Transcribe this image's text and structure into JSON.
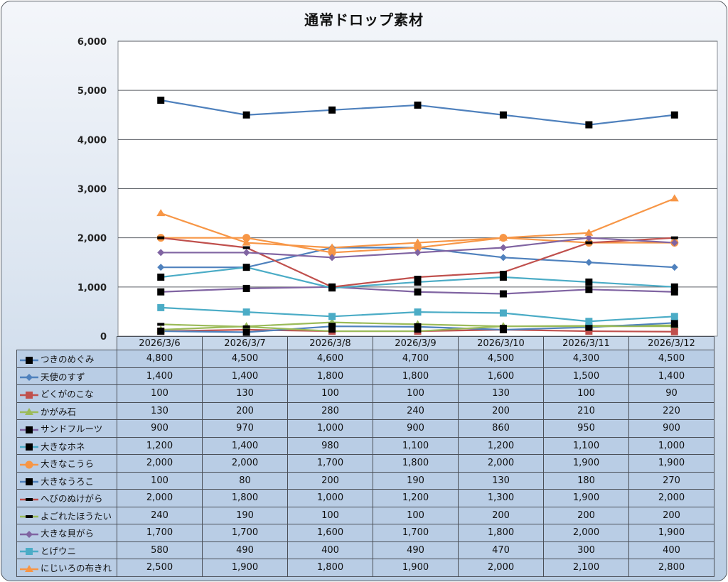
{
  "chart_data": {
    "type": "line",
    "title": "通常ドロップ素材",
    "xlabel": "",
    "ylabel": "",
    "ylim": [
      0,
      6000
    ],
    "yticks": [
      "0",
      "1,000",
      "2,000",
      "3,000",
      "4,000",
      "5,000",
      "6,000"
    ],
    "grid": true,
    "legend": "data-table-left",
    "categories": [
      "2026/3/6",
      "2026/3/7",
      "2026/3/8",
      "2026/3/9",
      "2026/3/10",
      "2026/3/11",
      "2026/3/12"
    ],
    "series": [
      {
        "name": "つきのめぐみ",
        "color": "#4f81bd",
        "marker": "square-black",
        "values": [
          4800,
          4500,
          4600,
          4700,
          4500,
          4300,
          4500
        ],
        "labels": [
          "4,800",
          "4,500",
          "4,600",
          "4,700",
          "4,500",
          "4,300",
          "4,500"
        ]
      },
      {
        "name": "天使のすず",
        "color": "#4f81bd",
        "marker": "diamond",
        "values": [
          1400,
          1400,
          1800,
          1800,
          1600,
          1500,
          1400
        ],
        "labels": [
          "1,400",
          "1,400",
          "1,800",
          "1,800",
          "1,600",
          "1,500",
          "1,400"
        ]
      },
      {
        "name": "どくがのこな",
        "color": "#c0504d",
        "marker": "square",
        "values": [
          100,
          130,
          100,
          100,
          130,
          100,
          90
        ],
        "labels": [
          "100",
          "130",
          "100",
          "100",
          "130",
          "100",
          "90"
        ]
      },
      {
        "name": "かがみ石",
        "color": "#9bbb59",
        "marker": "triangle",
        "values": [
          130,
          200,
          280,
          240,
          200,
          210,
          220
        ],
        "labels": [
          "130",
          "200",
          "280",
          "240",
          "200",
          "210",
          "220"
        ]
      },
      {
        "name": "サンドフルーツ",
        "color": "#8064a2",
        "marker": "square-black",
        "values": [
          900,
          970,
          1000,
          900,
          860,
          950,
          900
        ],
        "labels": [
          "900",
          "970",
          "1,000",
          "900",
          "860",
          "950",
          "900"
        ]
      },
      {
        "name": "大きなホネ",
        "color": "#4bacc6",
        "marker": "square-black",
        "values": [
          1200,
          1400,
          980,
          1100,
          1200,
          1100,
          1000
        ],
        "labels": [
          "1,200",
          "1,400",
          "980",
          "1,100",
          "1,200",
          "1,100",
          "1,000"
        ]
      },
      {
        "name": "大きなこうら",
        "color": "#f79646",
        "marker": "circle",
        "values": [
          2000,
          2000,
          1700,
          1800,
          2000,
          1900,
          1900
        ],
        "labels": [
          "2,000",
          "2,000",
          "1,700",
          "1,800",
          "2,000",
          "1,900",
          "1,900"
        ]
      },
      {
        "name": "大きなうろこ",
        "color": "#4f81bd",
        "marker": "square-black",
        "values": [
          100,
          80,
          200,
          190,
          130,
          180,
          270
        ],
        "labels": [
          "100",
          "80",
          "200",
          "190",
          "130",
          "180",
          "270"
        ]
      },
      {
        "name": "へびのぬけがら",
        "color": "#c0504d",
        "marker": "dash-black",
        "values": [
          2000,
          1800,
          1000,
          1200,
          1300,
          1900,
          2000
        ],
        "labels": [
          "2,000",
          "1,800",
          "1,000",
          "1,200",
          "1,300",
          "1,900",
          "2,000"
        ]
      },
      {
        "name": "よごれたほうたい",
        "color": "#9bbb59",
        "marker": "dash-black",
        "values": [
          240,
          190,
          100,
          100,
          200,
          200,
          200
        ],
        "labels": [
          "240",
          "190",
          "100",
          "100",
          "200",
          "200",
          "200"
        ]
      },
      {
        "name": "大きな貝がら",
        "color": "#8064a2",
        "marker": "diamond",
        "values": [
          1700,
          1700,
          1600,
          1700,
          1800,
          2000,
          1900
        ],
        "labels": [
          "1,700",
          "1,700",
          "1,600",
          "1,700",
          "1,800",
          "2,000",
          "1,900"
        ]
      },
      {
        "name": "とげウニ",
        "color": "#4bacc6",
        "marker": "square",
        "values": [
          580,
          490,
          400,
          490,
          470,
          300,
          400
        ],
        "labels": [
          "580",
          "490",
          "400",
          "490",
          "470",
          "300",
          "400"
        ]
      },
      {
        "name": "にじいろの布きれ",
        "color": "#f79646",
        "marker": "triangle",
        "values": [
          2500,
          1900,
          1800,
          1900,
          2000,
          2100,
          2800
        ],
        "labels": [
          "2,500",
          "1,900",
          "1,800",
          "1,900",
          "2,000",
          "2,100",
          "2,800"
        ]
      }
    ]
  }
}
